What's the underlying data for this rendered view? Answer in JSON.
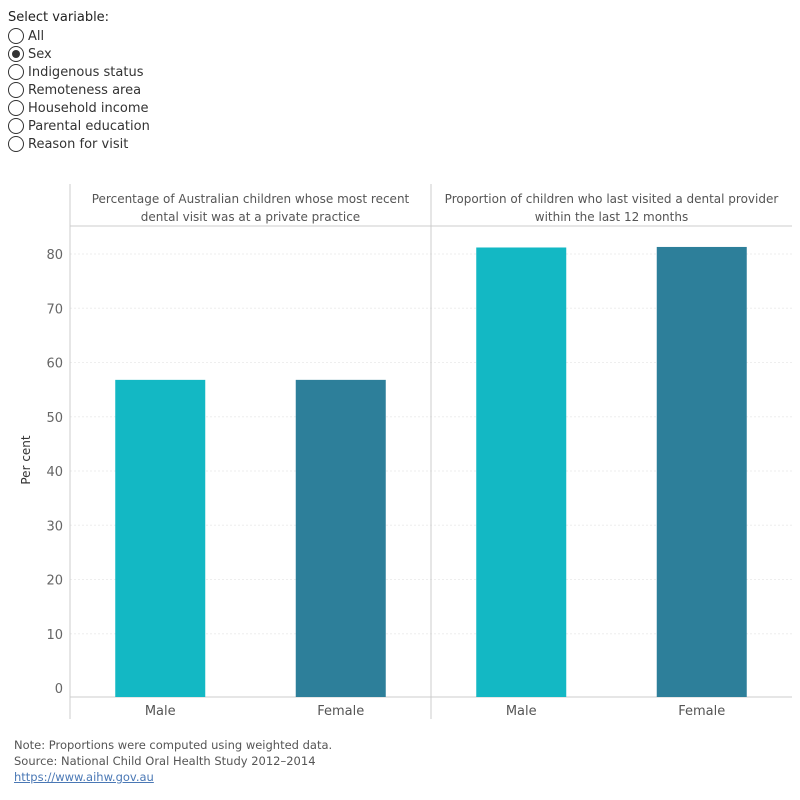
{
  "filter": {
    "label": "Select variable:",
    "selected_index": 1,
    "options": [
      "All",
      "Sex",
      "Indigenous status",
      "Remoteness area",
      "Household income",
      "Parental education",
      "Reason for visit"
    ]
  },
  "chart_data": {
    "type": "bar",
    "ylabel": "Per cent",
    "ylim": [
      0,
      85
    ],
    "yticks": [
      0,
      10,
      20,
      30,
      40,
      50,
      60,
      70,
      80
    ],
    "grid": true,
    "colors": {
      "Male": "#13b8c4",
      "Female": "#2d7f9a"
    },
    "panels": [
      {
        "title": "Percentage of Australian children whose most recent dental visit was at a private practice",
        "title_lines": [
          "Percentage of Australian children whose most recent",
          "dental visit was at a private practice"
        ],
        "categories": [
          "Male",
          "Female"
        ],
        "values": [
          56.8,
          56.8
        ]
      },
      {
        "title": "Proportion of children who last visited a dental provider within the last 12 months",
        "title_lines": [
          "Proportion of children who last visited a dental provider",
          "within the last 12 months"
        ],
        "categories": [
          "Male",
          "Female"
        ],
        "values": [
          81.2,
          81.3
        ]
      }
    ]
  },
  "footer": {
    "note": "Note: Proportions were computed using weighted data.",
    "source": "Source: National Child Oral Health Study 2012–2014",
    "link": "https://www.aihw.gov.au"
  }
}
